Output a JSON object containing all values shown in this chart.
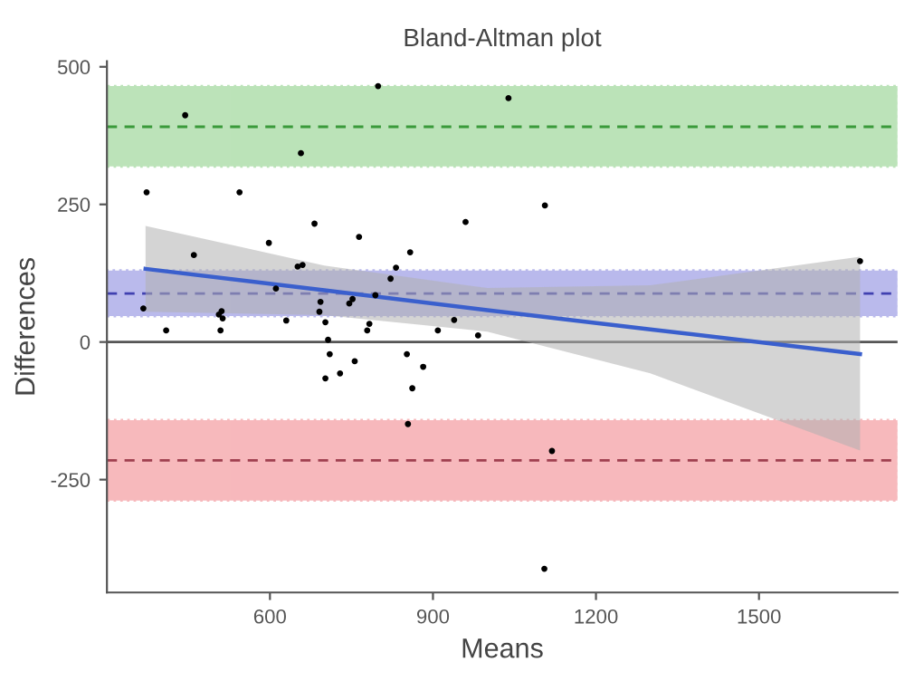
{
  "chart_data": {
    "type": "scatter",
    "title": "Bland-Altman plot",
    "xlabel": "Means",
    "ylabel": "Differences",
    "xlim": [
      300,
      1755
    ],
    "ylim": [
      -455,
      510
    ],
    "xticks": [
      600,
      900,
      1200,
      1500
    ],
    "yticks": [
      -250,
      0,
      250,
      500
    ],
    "grid": false,
    "legend": false,
    "series": [
      {
        "color": "#000000",
        "marker": "circle",
        "x": [
          444,
          799,
          657,
          1039,
          373,
          544,
          1106,
          598,
          682,
          764,
          960,
          460,
          858,
          651,
          660,
          832,
          822,
          611,
          367,
          693,
          691,
          752,
          746,
          794,
          506,
          511,
          513,
          630,
          702,
          939,
          783,
          409,
          509,
          779,
          909,
          983,
          1686,
          707,
          710,
          852,
          756,
          882,
          729,
          702,
          862,
          854,
          1119,
          1105
        ],
        "values": [
          412,
          465,
          343,
          443,
          272,
          272,
          248,
          180,
          215,
          191,
          218,
          158,
          163,
          137,
          140,
          135,
          115,
          97,
          61,
          73,
          55,
          78,
          70,
          85,
          50,
          56,
          43,
          39,
          36,
          40,
          33,
          21,
          21,
          21,
          21,
          12,
          147,
          4,
          -22,
          -22,
          -35,
          -45,
          -57,
          -66,
          -84,
          -149,
          -198,
          -412
        ]
      },
      {
        "type": "line",
        "color": "#3a5fcd",
        "marker": "none",
        "line_style": "solid",
        "x": [
          371,
          700,
          1000,
          1300,
          1686
        ],
        "values": [
          133,
          94,
          58,
          23,
          -22
        ],
        "lower": [
          55,
          49,
          19,
          -57,
          -197
        ],
        "upper": [
          211,
          139,
          98,
          103,
          155
        ]
      }
    ],
    "bands": [
      {
        "axis": "y",
        "from": 319,
        "to": 465,
        "color": "#8fd18a"
      },
      {
        "axis": "y",
        "from": 47,
        "to": 130,
        "color": "#8c8ce0"
      },
      {
        "axis": "y",
        "from": -288,
        "to": -142,
        "color": "#f28a90"
      }
    ],
    "ref_lines": [
      {
        "axis": "y",
        "value": 391,
        "color": "#3a9a3a",
        "line_style": "dashed"
      },
      {
        "axis": "y",
        "value": 88,
        "color": "#4040b0",
        "line_style": "dashed"
      },
      {
        "axis": "y",
        "value": -215,
        "color": "#a04050",
        "line_style": "dashed"
      },
      {
        "axis": "y",
        "value": 0,
        "color": "#555555",
        "line_style": "solid"
      }
    ]
  }
}
